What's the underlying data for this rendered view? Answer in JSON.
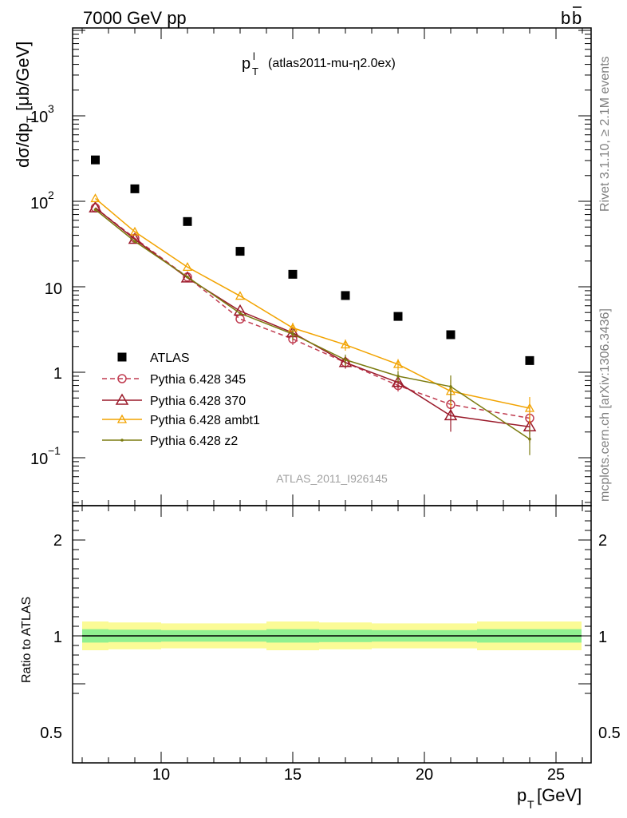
{
  "header": {
    "left": "7000 GeV pp",
    "right_main": "b",
    "right_bar": "b"
  },
  "plot_title": {
    "main": "p",
    "sub": "T",
    "sup": "l",
    "tag": "(atlas2011-mu-η2.0ex)"
  },
  "y_axis_label": {
    "a": "dσ/dp",
    "sub": "T",
    "b": " [μb/GeV]"
  },
  "x_axis_label": {
    "main": "p",
    "sub": "T",
    "rest": " [GeV]"
  },
  "ratio_label": "Ratio to ATLAS",
  "side_text_top": "Rivet 3.1.10, ≥ 2.1M events",
  "side_text_bottom": "mcplots.cern.ch [arXiv:1306.3436]",
  "watermark": "ATLAS_2011_I926145",
  "y_tick_labels": {
    "e3_base": "10",
    "e3_exp": "3",
    "e2_base": "10",
    "e2_exp": "2",
    "ten": "10",
    "one": "1",
    "em1_base": "10",
    "em1_exp": "−1"
  },
  "ratio_tick_labels": {
    "r2": "2",
    "r1": "1",
    "r05": "0.5"
  },
  "x_tick_labels": [
    "10",
    "15",
    "20",
    "25"
  ],
  "colors": {
    "atlas": "#000000",
    "p345": "#c03c50",
    "p370": "#9a1a2a",
    "ambt1": "#f2a300",
    "z2": "#7b7b10",
    "band_inner": "#90f090",
    "band_outer": "#fbfb96"
  },
  "chart_data": {
    "type": "scatter",
    "x_scale": "linear",
    "y_scale": "log",
    "xlim": [
      6.6,
      26.3
    ],
    "ylim": [
      0.03,
      10000
    ],
    "ratio_ylim": [
      0.4,
      2.3
    ],
    "legend_position": "bottom-left",
    "x": [
      7.5,
      9,
      11,
      13,
      15,
      17,
      19,
      21,
      24
    ],
    "bin_edges": [
      7,
      8,
      10,
      12,
      14,
      16,
      18,
      20,
      22,
      26
    ],
    "series": [
      {
        "name": "ATLAS",
        "style": "data",
        "values": [
          305,
          140,
          58,
          26,
          14,
          7.9,
          4.5,
          2.75,
          1.37
        ]
      },
      {
        "name": "Pythia 6.428 345",
        "style": "dashed-circle",
        "values": [
          84,
          37,
          13,
          4.2,
          2.45,
          1.3,
          0.7,
          0.42,
          0.29
        ]
      },
      {
        "name": "Pythia 6.428 370",
        "style": "solid-triangle",
        "values": [
          84,
          36,
          12.7,
          5.2,
          2.9,
          1.3,
          0.76,
          0.31,
          0.23
        ]
      },
      {
        "name": "Pythia 6.428 ambt1",
        "style": "solid-small-triangle",
        "values": [
          108,
          44,
          17,
          7.8,
          3.3,
          2.1,
          1.24,
          0.6,
          0.38
        ]
      },
      {
        "name": "Pythia 6.428 z2",
        "style": "solid-dot",
        "values": [
          80,
          34,
          13,
          4.9,
          2.8,
          1.4,
          0.9,
          0.68,
          0.165
        ]
      }
    ],
    "ratio_band": {
      "inner": [
        0.07,
        0.065,
        0.06,
        0.06,
        0.07,
        0.065,
        0.06,
        0.06,
        0.07
      ],
      "outer": [
        0.15,
        0.14,
        0.13,
        0.13,
        0.15,
        0.14,
        0.13,
        0.13,
        0.15
      ]
    }
  }
}
